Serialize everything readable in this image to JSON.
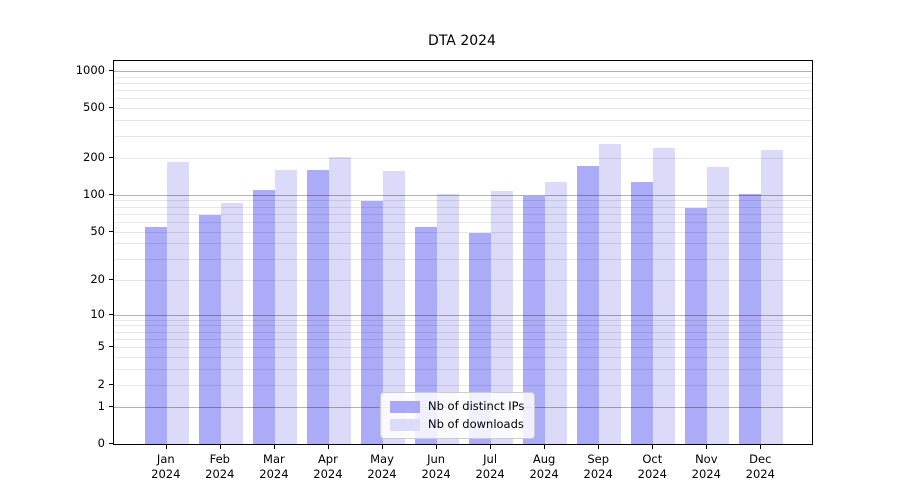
{
  "title": "DTA 2024",
  "colors": {
    "ips_bar": "#a9a9f7",
    "downloads_bar": "#dcdcfa",
    "major_grid": "#b3b3b3",
    "minor_grid": "#e8e8e8",
    "axis": "#000000",
    "legend_border": "#cccccc"
  },
  "legend": {
    "items": [
      {
        "label": "Nb of distinct IPs",
        "series": "ips"
      },
      {
        "label": "Nb of downloads",
        "series": "downloads"
      }
    ]
  },
  "chart_data": {
    "type": "bar",
    "title": "DTA 2024",
    "yscale": "symlog",
    "categories": [
      "Jan",
      "Feb",
      "Mar",
      "Apr",
      "May",
      "Jun",
      "Jul",
      "Aug",
      "Sep",
      "Oct",
      "Nov",
      "Dec"
    ],
    "x_year": "2024",
    "series": [
      {
        "name": "Nb of distinct IPs",
        "color": "#a9a9f7",
        "fill": "rgba(15,15,235,0.35)",
        "values": [
          55,
          68,
          110,
          158,
          89,
          55,
          49,
          97,
          172,
          127,
          78,
          102
        ]
      },
      {
        "name": "Nb of downloads",
        "color": "#dcdcfa",
        "fill": "rgba(10,10,215,0.145)",
        "values": [
          185,
          85,
          158,
          202,
          157,
          101,
          107,
          126,
          259,
          241,
          167,
          231
        ]
      }
    ],
    "yticks": [
      0,
      1,
      2,
      5,
      10,
      20,
      50,
      100,
      200,
      500,
      1000
    ],
    "ylim": [
      0,
      1200
    ],
    "xlabel": "",
    "ylabel": "",
    "grid": "both",
    "legend_position": "lower center"
  }
}
